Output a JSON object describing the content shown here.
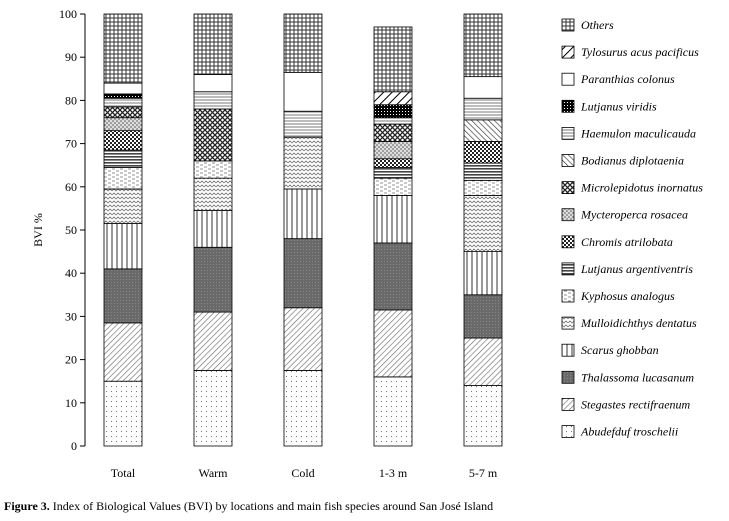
{
  "chart_data": {
    "type": "stacked-bar",
    "ylabel": "BVI %",
    "ylim": [
      0,
      100
    ],
    "yticks": [
      0,
      10,
      20,
      30,
      40,
      50,
      60,
      70,
      80,
      90,
      100
    ],
    "grid": false,
    "legend_position": "right",
    "categories": [
      "Total",
      "Warm",
      "Cold",
      "1-3 m",
      "5-7 m"
    ],
    "series": [
      {
        "name": "Abudefduf troschelii",
        "pattern": "dots",
        "values": [
          15,
          17.5,
          17.5,
          16,
          14
        ]
      },
      {
        "name": "Stegastes rectifraenum",
        "pattern": "diag-fine",
        "values": [
          13.5,
          13.5,
          14.5,
          15.5,
          11
        ]
      },
      {
        "name": "Thalassoma lucasanum",
        "pattern": "dark",
        "values": [
          12.5,
          15,
          16,
          15.5,
          10
        ]
      },
      {
        "name": "Scarus ghobban",
        "pattern": "vlines",
        "values": [
          10.5,
          8.5,
          11.5,
          11,
          10
        ]
      },
      {
        "name": "Mulloidichthys dentatus",
        "pattern": "wave",
        "values": [
          8,
          7.5,
          12,
          0,
          13
        ]
      },
      {
        "name": "Kyphosus analogus",
        "pattern": "dash",
        "values": [
          5,
          4,
          0,
          4,
          3.5
        ]
      },
      {
        "name": "Lutjanus argentiventris",
        "pattern": "hlines-dark",
        "values": [
          4,
          0,
          0,
          2.5,
          4
        ]
      },
      {
        "name": "Chromis atrilobata",
        "pattern": "checker",
        "values": [
          4.5,
          0,
          0,
          2,
          5
        ]
      },
      {
        "name": "Mycteroperca rosacea",
        "pattern": "speckle",
        "values": [
          3,
          0,
          0,
          4,
          0
        ]
      },
      {
        "name": "Microlepidotus inornatus",
        "pattern": "crosshatch",
        "values": [
          2.5,
          12,
          0,
          4,
          0
        ]
      },
      {
        "name": "Bodianus diplotaenia",
        "pattern": "backdiag",
        "values": [
          0,
          0,
          0,
          0,
          5
        ]
      },
      {
        "name": "Haemulon maculicauda",
        "pattern": "hlines",
        "values": [
          2,
          4,
          6,
          1.5,
          5
        ]
      },
      {
        "name": "Lutjanus viridis",
        "pattern": "blackdots",
        "values": [
          1,
          0,
          0,
          3,
          0
        ]
      },
      {
        "name": "Paranthias colonus",
        "pattern": "white",
        "values": [
          2.5,
          4,
          9,
          0,
          5
        ]
      },
      {
        "name": "Tylosurus acus pacificus",
        "pattern": "diag-wide",
        "values": [
          0,
          0,
          0,
          3,
          0
        ]
      },
      {
        "name": "Others",
        "pattern": "grid",
        "values": [
          16,
          14,
          13.5,
          15,
          14.5
        ]
      }
    ]
  },
  "caption": {
    "label": "Figure 3.",
    "text": " Index of Biological Values (BVI) by locations and main fish species around San José Island"
  }
}
